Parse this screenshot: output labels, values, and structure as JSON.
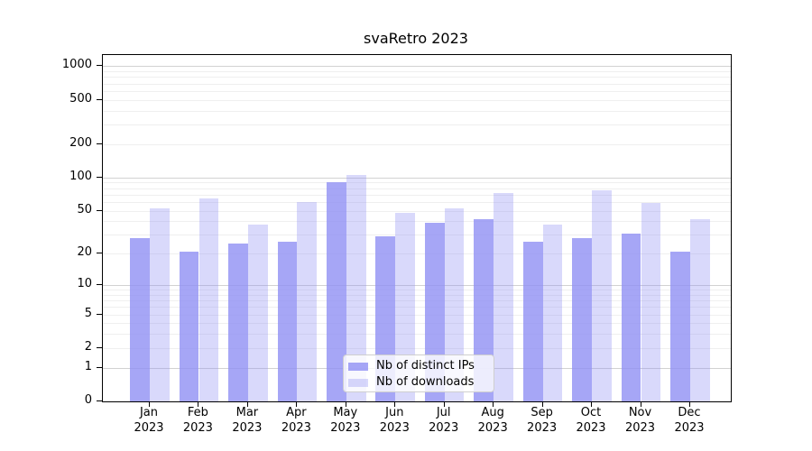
{
  "title": "svaRetro 2023",
  "chart_data": {
    "type": "bar",
    "title": "svaRetro 2023",
    "categories": [
      "Jan 2023",
      "Feb 2023",
      "Mar 2023",
      "Apr 2023",
      "May 2023",
      "Jun 2023",
      "Jul 2023",
      "Aug 2023",
      "Sep 2023",
      "Oct 2023",
      "Nov 2023",
      "Dec 2023"
    ],
    "series": [
      {
        "name": "Nb of distinct IPs",
        "values": [
          28,
          21,
          25,
          26,
          91,
          29,
          39,
          42,
          26,
          28,
          31,
          21
        ]
      },
      {
        "name": "Nb of downloads",
        "values": [
          52,
          65,
          37,
          60,
          105,
          48,
          52,
          72,
          37,
          77,
          59,
          42
        ]
      }
    ],
    "xlabel": "",
    "ylabel": "",
    "y_scale": "log1p",
    "y_ticks": [
      1000,
      500,
      200,
      100,
      50,
      20,
      10,
      5,
      2,
      1,
      0
    ],
    "ylim": [
      0,
      1260
    ],
    "grid": true,
    "legend_position": "lower center",
    "colors": {
      "distinct_ips_bar": "rgba(144,144,244,0.8)",
      "downloads_bar": "rgba(144,144,244,0.34)",
      "grid_major": "#d2d2d2",
      "grid_minor": "#efefef",
      "spine": "#000000",
      "text": "#000000",
      "legend_border": "#cfcfcf",
      "legend_background": "rgba(255,255,255,0.8)"
    }
  }
}
